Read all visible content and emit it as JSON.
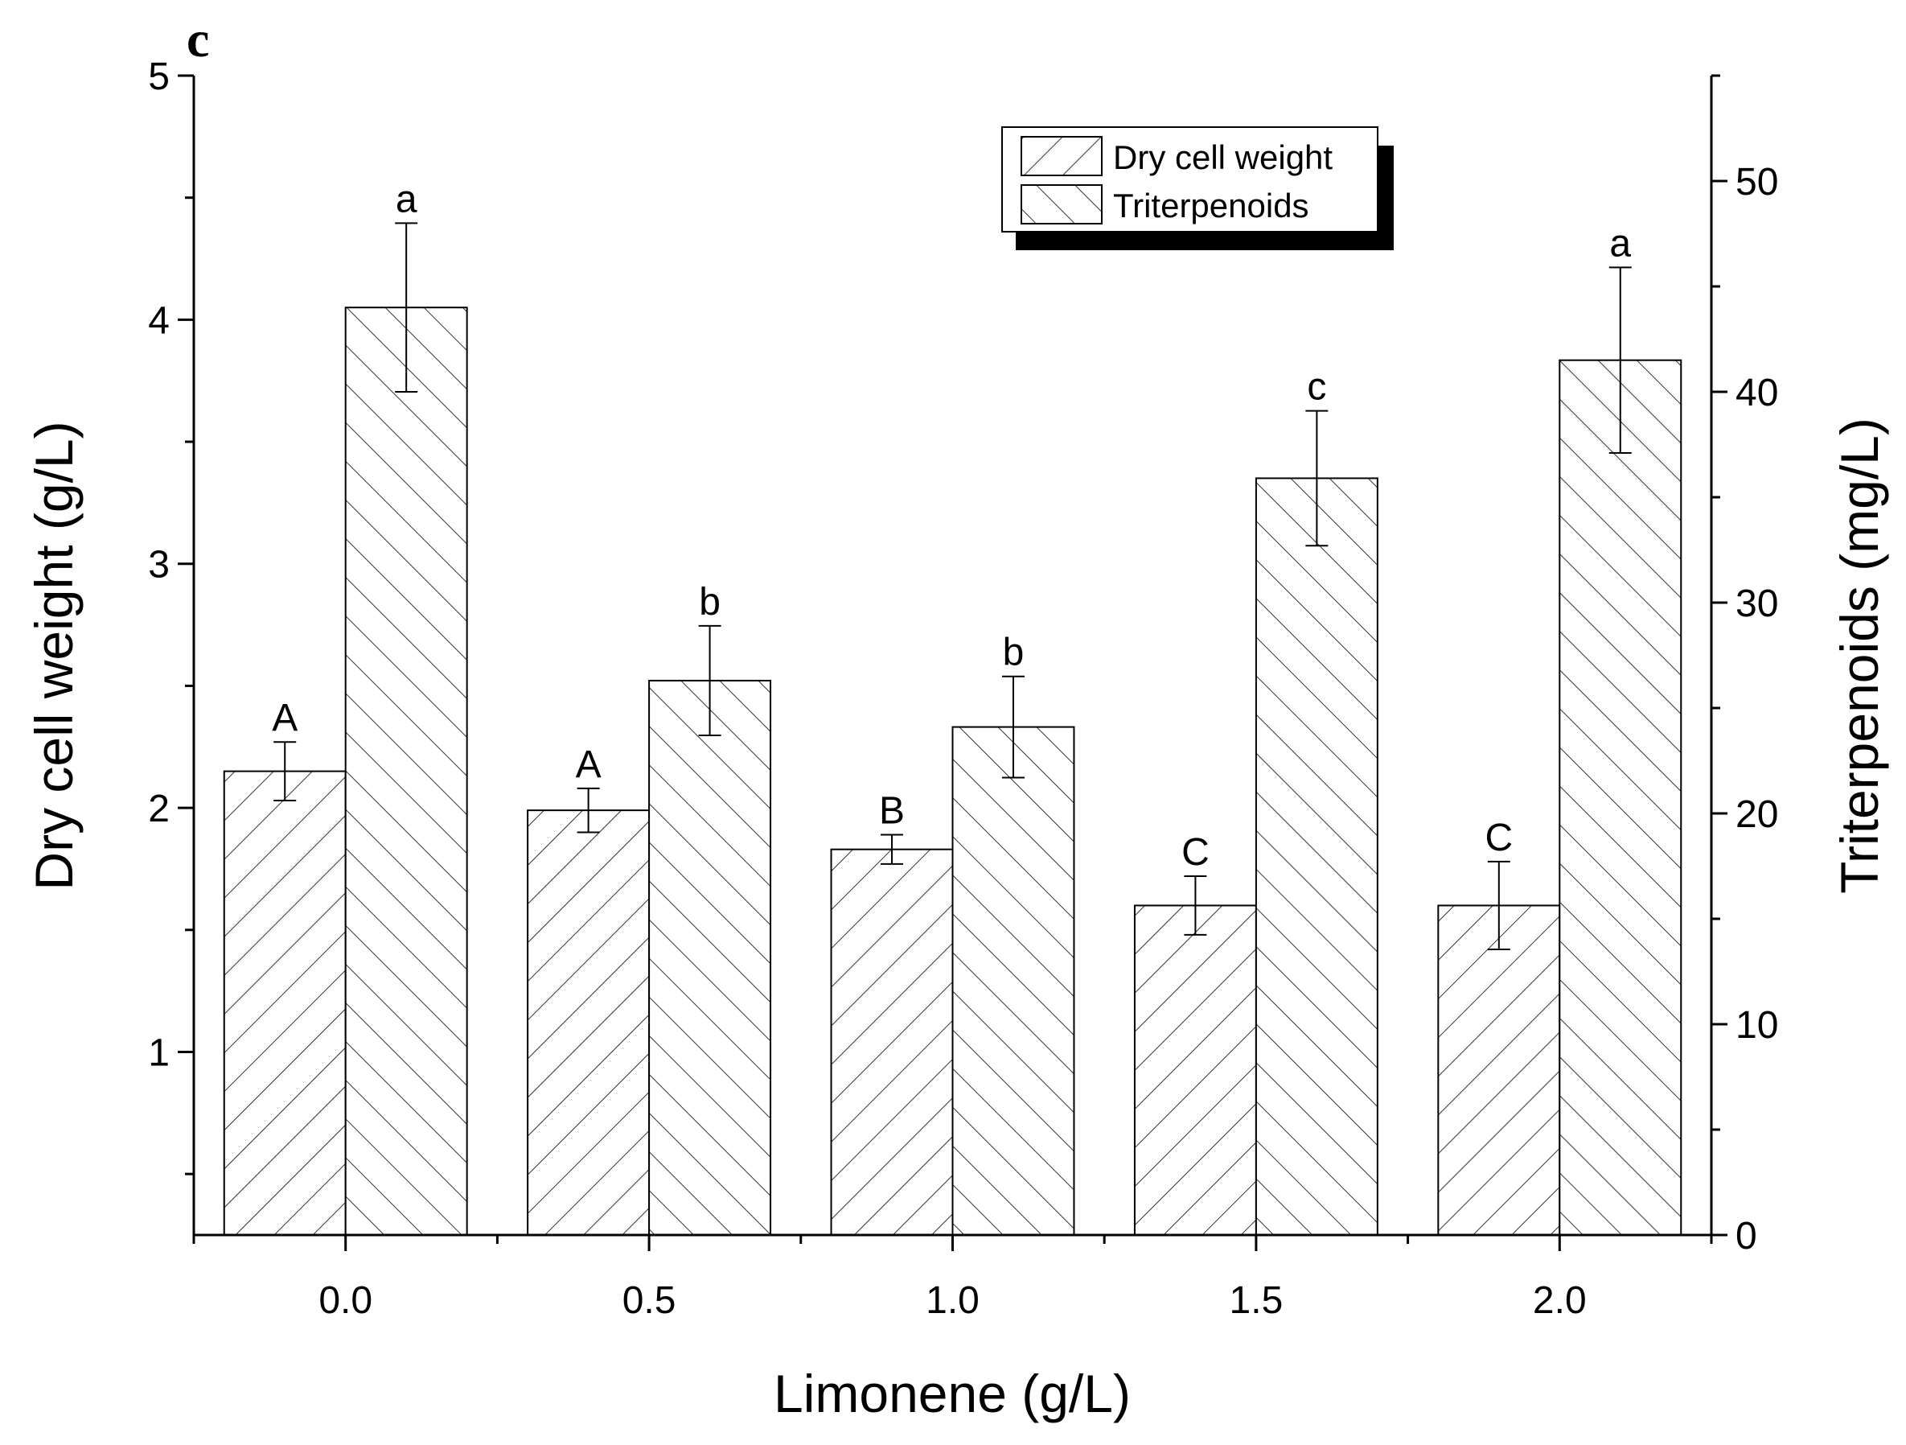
{
  "chart_data": {
    "type": "bar",
    "panel_label": "c",
    "title": "",
    "xlabel": "Limonene (g/L)",
    "categories": [
      "0.0",
      "0.5",
      "1.0",
      "1.5",
      "2.0"
    ],
    "left_axis": {
      "label": "Dry cell weight (g/L)",
      "ylim": [
        0.25,
        5
      ],
      "ticks": [
        1,
        2,
        3,
        4,
        5
      ],
      "tick_labels": [
        "1",
        "2",
        "3",
        "4",
        "5"
      ]
    },
    "right_axis": {
      "label": "Triterpenoids (mg/L)",
      "ylim": [
        0,
        55
      ],
      "ticks": [
        0,
        10,
        20,
        30,
        40,
        50
      ],
      "tick_labels": [
        "0",
        "10",
        "20",
        "30",
        "40",
        "50"
      ]
    },
    "series": [
      {
        "name": "Dry cell weight",
        "axis": "left",
        "pattern": "forward-hatch",
        "values": [
          2.15,
          1.99,
          1.83,
          1.6,
          1.6
        ],
        "errors": [
          0.12,
          0.09,
          0.06,
          0.12,
          0.18
        ],
        "significance": [
          "A",
          "A",
          "B",
          "C",
          "C"
        ]
      },
      {
        "name": "Triterpenoids",
        "axis": "right",
        "pattern": "back-hatch",
        "values": [
          44.0,
          26.3,
          24.1,
          35.9,
          41.5
        ],
        "errors": [
          4.0,
          2.6,
          2.4,
          3.2,
          4.4
        ],
        "significance": [
          "a",
          "b",
          "b",
          "c",
          "a"
        ]
      }
    ],
    "legend": {
      "position": "top-right",
      "entries": [
        "Dry cell weight",
        "Triterpenoids"
      ]
    }
  }
}
